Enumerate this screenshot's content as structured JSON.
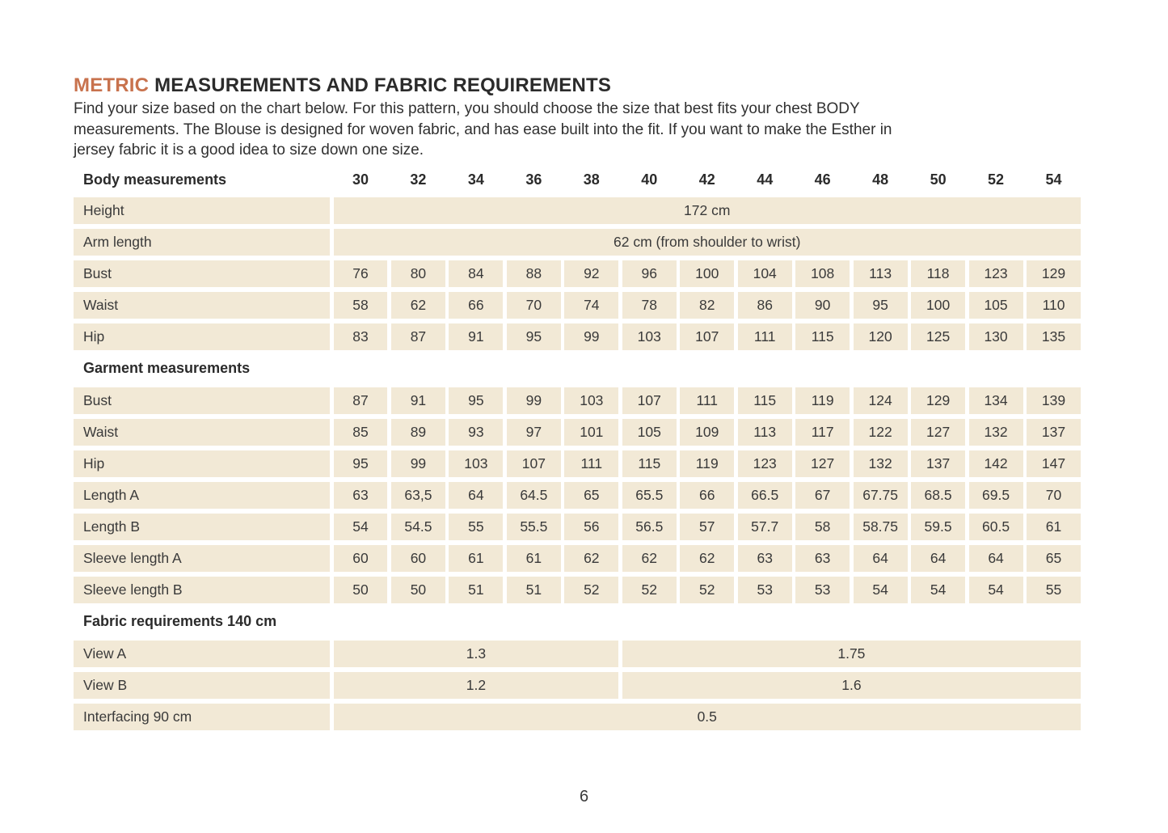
{
  "colors": {
    "accent": "#c8724d",
    "cell_background": "#f2e9d6",
    "text": "#2e2e2e"
  },
  "page": {
    "title_accent": "METRIC",
    "title_rest": " MEASUREMENTS AND FABRIC REQUIREMENTS",
    "intro": [
      "Find your size based on the chart below. For this pattern, you should choose the size that best fits your chest BODY",
      "measurements.  The Blouse is designed for woven fabric, and has ease built into the fit. If you want to make the Esther in",
      "jersey fabric it is a good idea to size down one size."
    ],
    "page_number": "6"
  },
  "table": {
    "header_label": "Body measurements",
    "sizes": [
      "30",
      "32",
      "34",
      "36",
      "38",
      "40",
      "42",
      "44",
      "46",
      "48",
      "50",
      "52",
      "54"
    ],
    "span_rows": [
      {
        "label": "Height",
        "value": "172 cm"
      },
      {
        "label": "Arm length",
        "value": "62 cm (from shoulder to wrist)"
      }
    ],
    "body_rows": [
      {
        "label": "Bust",
        "values": [
          "76",
          "80",
          "84",
          "88",
          "92",
          "96",
          "100",
          "104",
          "108",
          "113",
          "118",
          "123",
          "129"
        ]
      },
      {
        "label": "Waist",
        "values": [
          "58",
          "62",
          "66",
          "70",
          "74",
          "78",
          "82",
          "86",
          "90",
          "95",
          "100",
          "105",
          "110"
        ]
      },
      {
        "label": "Hip",
        "values": [
          "83",
          "87",
          "91",
          "95",
          "99",
          "103",
          "107",
          "111",
          "115",
          "120",
          "125",
          "130",
          "135"
        ]
      }
    ],
    "garment_header": "Garment measurements",
    "garment_rows": [
      {
        "label": "Bust",
        "values": [
          "87",
          "91",
          "95",
          "99",
          "103",
          "107",
          "111",
          "115",
          "119",
          "124",
          "129",
          "134",
          "139"
        ]
      },
      {
        "label": "Waist",
        "values": [
          "85",
          "89",
          "93",
          "97",
          "101",
          "105",
          "109",
          "113",
          "117",
          "122",
          "127",
          "132",
          "137"
        ]
      },
      {
        "label": "Hip",
        "values": [
          "95",
          "99",
          "103",
          "107",
          "111",
          "115",
          "119",
          "123",
          "127",
          "132",
          "137",
          "142",
          "147"
        ]
      },
      {
        "label": "Length A",
        "values": [
          "63",
          "63,5",
          "64",
          "64.5",
          "65",
          "65.5",
          "66",
          "66.5",
          "67",
          "67.75",
          "68.5",
          "69.5",
          "70"
        ]
      },
      {
        "label": "Length B",
        "values": [
          "54",
          "54.5",
          "55",
          "55.5",
          "56",
          "56.5",
          "57",
          "57.7",
          "58",
          "58.75",
          "59.5",
          "60.5",
          "61"
        ]
      },
      {
        "label": "Sleeve length A",
        "values": [
          "60",
          "60",
          "61",
          "61",
          "62",
          "62",
          "62",
          "63",
          "63",
          "64",
          "64",
          "64",
          "65"
        ]
      },
      {
        "label": "Sleeve length B",
        "values": [
          "50",
          "50",
          "51",
          "51",
          "52",
          "52",
          "52",
          "53",
          "53",
          "54",
          "54",
          "54",
          "55"
        ]
      }
    ],
    "fabric_header": "Fabric requirements 140 cm",
    "fabric_rows": [
      {
        "label": "View A",
        "left": "1.3",
        "right": "1.75"
      },
      {
        "label": "View B",
        "left": "1.2",
        "right": "1.6"
      }
    ],
    "interfacing_row": {
      "label": "Interfacing 90 cm",
      "value": "0.5"
    }
  }
}
